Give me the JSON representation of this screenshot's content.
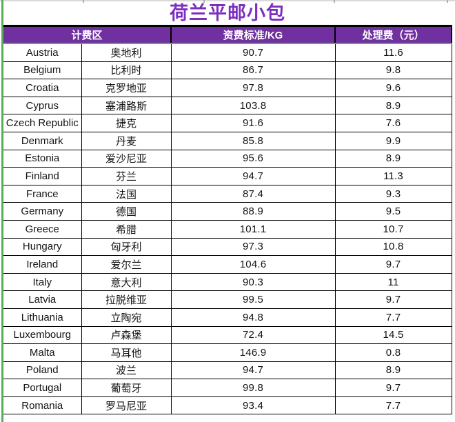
{
  "title": "荷兰平邮小包",
  "colors": {
    "title_text": "#7c2ebe",
    "header_bg": "#7030a0",
    "header_text": "#ffffff",
    "print_area_green": "#56ae59",
    "cell_border": "#000000"
  },
  "table": {
    "headers": {
      "zone": "计费区",
      "rate": "资费标准/KG",
      "fee": "处理费（元）"
    },
    "rows": [
      {
        "en": "Austria",
        "cn": "奥地利",
        "rate": "90.7",
        "fee": "11.6"
      },
      {
        "en": "Belgium",
        "cn": "比利时",
        "rate": "86.7",
        "fee": "9.8"
      },
      {
        "en": "Croatia",
        "cn": "克罗地亚",
        "rate": "97.8",
        "fee": "9.6"
      },
      {
        "en": "Cyprus",
        "cn": "塞浦路斯",
        "rate": "103.8",
        "fee": "8.9"
      },
      {
        "en": "Czech Republic",
        "cn": "捷克",
        "rate": "91.6",
        "fee": "7.6"
      },
      {
        "en": "Denmark",
        "cn": "丹麦",
        "rate": "85.8",
        "fee": "9.9"
      },
      {
        "en": "Estonia",
        "cn": "爱沙尼亚",
        "rate": "95.6",
        "fee": "8.9"
      },
      {
        "en": "Finland",
        "cn": "芬兰",
        "rate": "94.7",
        "fee": "11.3"
      },
      {
        "en": "France",
        "cn": "法国",
        "rate": "87.4",
        "fee": "9.3"
      },
      {
        "en": "Germany",
        "cn": "德国",
        "rate": "88.9",
        "fee": "9.5"
      },
      {
        "en": "Greece",
        "cn": "希腊",
        "rate": "101.1",
        "fee": "10.7"
      },
      {
        "en": "Hungary",
        "cn": "匈牙利",
        "rate": "97.3",
        "fee": "10.8"
      },
      {
        "en": "Ireland",
        "cn": "爱尔兰",
        "rate": "104.6",
        "fee": "9.7"
      },
      {
        "en": "Italy",
        "cn": "意大利",
        "rate": "90.3",
        "fee": "11"
      },
      {
        "en": "Latvia",
        "cn": "拉脱维亚",
        "rate": "99.5",
        "fee": "9.7"
      },
      {
        "en": "Lithuania",
        "cn": "立陶宛",
        "rate": "94.8",
        "fee": "7.7"
      },
      {
        "en": "Luxembourg",
        "cn": "卢森堡",
        "rate": "72.4",
        "fee": "14.5"
      },
      {
        "en": "Malta",
        "cn": "马耳他",
        "rate": "146.9",
        "fee": "0.8"
      },
      {
        "en": "Poland",
        "cn": "波兰",
        "rate": "94.7",
        "fee": "8.9"
      },
      {
        "en": "Portugal",
        "cn": "葡萄牙",
        "rate": "99.8",
        "fee": "9.7"
      },
      {
        "en": "Romania",
        "cn": "罗马尼亚",
        "rate": "93.4",
        "fee": "7.7"
      }
    ]
  }
}
